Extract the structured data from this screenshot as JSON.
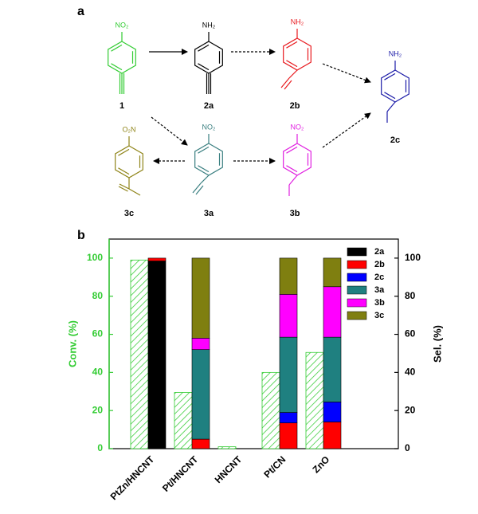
{
  "scheme": {
    "panel_label": "a",
    "compounds": [
      {
        "id": "1",
        "group": "NO₂",
        "color": "#33cc33"
      },
      {
        "id": "2a",
        "group": "NH₂",
        "color": "#000000"
      },
      {
        "id": "2b",
        "group": "NH₂",
        "color": "#e8191e"
      },
      {
        "id": "2c",
        "group": "NH₂",
        "color": "#1c1ca8"
      },
      {
        "id": "3a",
        "group": "NO₂",
        "color": "#3a7f80"
      },
      {
        "id": "3b",
        "group": "NO₂",
        "color": "#e020e0"
      },
      {
        "id": "3c",
        "group": "O₂N",
        "color": "#8f8418"
      }
    ]
  },
  "chart_data": {
    "type": "bar",
    "panel_label": "b",
    "categories": [
      "PtZn/HNCNT",
      "Pt/HNCNT",
      "HNCNT",
      "Pt/CN",
      "ZnO"
    ],
    "y_label": "Conv. (%)",
    "y2_label": "Sel. (%)",
    "ylim": [
      0,
      110
    ],
    "yticks": [
      0,
      20,
      40,
      60,
      80,
      100
    ],
    "y2lim": [
      0,
      110
    ],
    "y2ticks": [
      0,
      20,
      40,
      60,
      80,
      100
    ],
    "y_color": "#33cc33",
    "pattern": "hatch",
    "stacked": true,
    "series": [
      {
        "color": "#33cc33",
        "axis": "y",
        "values": [
          99,
          29.5,
          1,
          40,
          50.5
        ]
      },
      {
        "name": "2a",
        "color": "#000000",
        "axis": "y2",
        "values": [
          98.5,
          0,
          null,
          0,
          0
        ]
      },
      {
        "name": "2b",
        "color": "#ff0000",
        "axis": "y2",
        "values": [
          1.5,
          5,
          null,
          13.5,
          14
        ]
      },
      {
        "name": "2c",
        "color": "#0000ff",
        "axis": "y2",
        "values": [
          0,
          0,
          null,
          5.5,
          10.5
        ]
      },
      {
        "name": "3a",
        "color": "#1f8080",
        "axis": "y2",
        "values": [
          0,
          47,
          null,
          39.5,
          34
        ]
      },
      {
        "name": "3b",
        "color": "#ff00ff",
        "axis": "y2",
        "values": [
          0,
          6,
          null,
          22.5,
          26.5
        ]
      },
      {
        "name": "3c",
        "color": "#7f7f10",
        "axis": "y2",
        "values": [
          0,
          42,
          null,
          19,
          15
        ]
      }
    ]
  }
}
